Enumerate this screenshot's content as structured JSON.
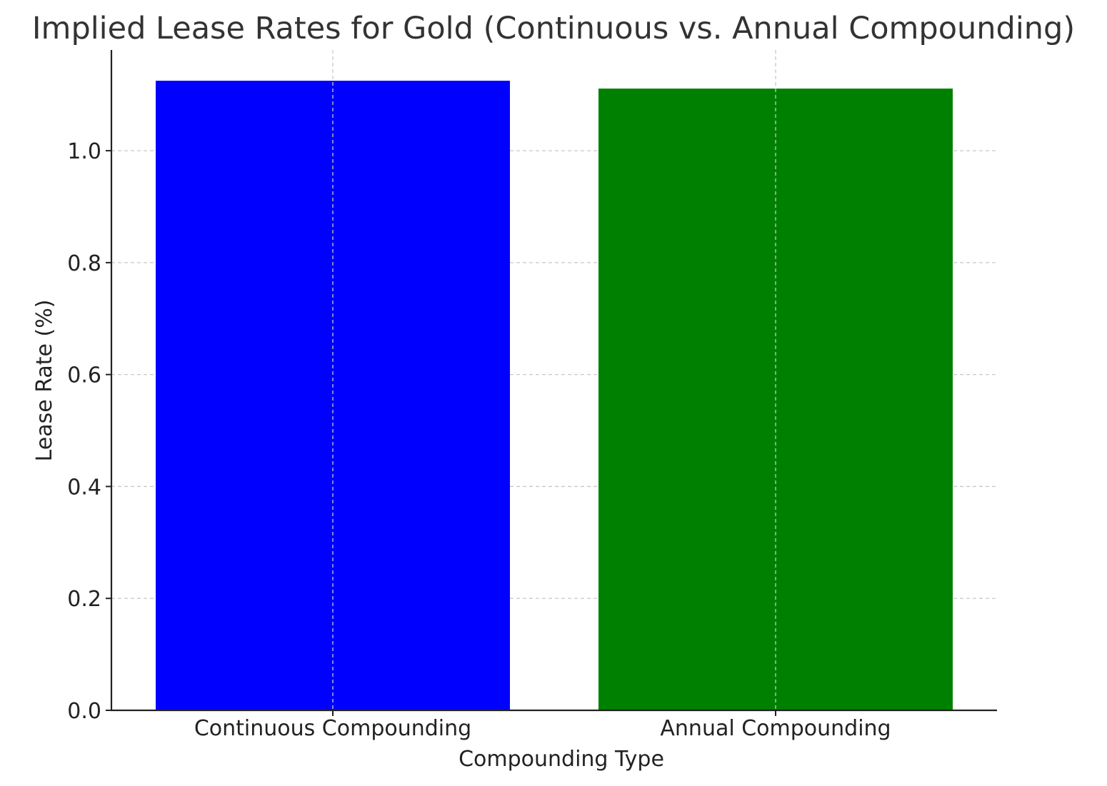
{
  "chart_data": {
    "type": "bar",
    "title": "Implied Lease Rates for Gold (Continuous vs. Annual Compounding)",
    "xlabel": "Compounding Type",
    "ylabel": "Lease Rate (%)",
    "categories": [
      "Continuous Compounding",
      "Annual Compounding"
    ],
    "values": [
      1.125,
      1.111
    ],
    "colors": [
      "#0000ff",
      "#008000"
    ],
    "ylim": [
      0,
      1.18
    ],
    "yticks": [
      0.0,
      0.2,
      0.4,
      0.6,
      0.8,
      1.0
    ],
    "ytick_labels": [
      "0.0",
      "0.2",
      "0.4",
      "0.6",
      "0.8",
      "1.0"
    ],
    "grid": true,
    "grid_style": "dashed"
  }
}
